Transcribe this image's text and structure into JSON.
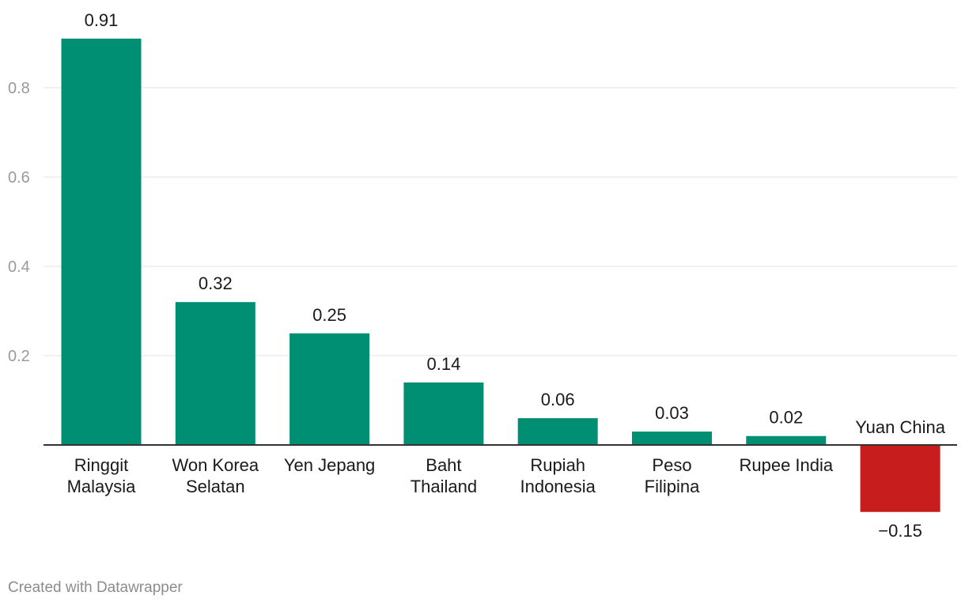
{
  "chart_data": {
    "type": "bar",
    "categories": [
      [
        "Ringgit",
        "Malaysia"
      ],
      [
        "Won Korea",
        "Selatan"
      ],
      [
        "Yen Jepang"
      ],
      [
        "Baht",
        "Thailand"
      ],
      [
        "Rupiah",
        "Indonesia"
      ],
      [
        "Peso",
        "Filipina"
      ],
      [
        "Rupee India"
      ],
      [
        "Yuan China"
      ]
    ],
    "values": [
      0.91,
      0.32,
      0.25,
      0.14,
      0.06,
      0.03,
      0.02,
      -0.15
    ],
    "value_labels": [
      "0.91",
      "0.32",
      "0.25",
      "0.14",
      "0.06",
      "0.03",
      "0.02",
      "−0.15"
    ],
    "y_ticks": [
      0.8,
      0.6,
      0.4,
      0.2
    ],
    "y_tick_labels": [
      "0.8",
      "0.6",
      "0.4",
      "0.2"
    ],
    "ylim": [
      -0.15,
      0.91
    ],
    "grid": true,
    "colors": {
      "positive": "#008f72",
      "negative": "#c71e1d",
      "grid": "#e3e3e3",
      "baseline": "#333333",
      "tick_label": "#9a9a9a",
      "text": "#1a1a1a"
    }
  },
  "footer": {
    "credit": "Created with Datawrapper"
  }
}
